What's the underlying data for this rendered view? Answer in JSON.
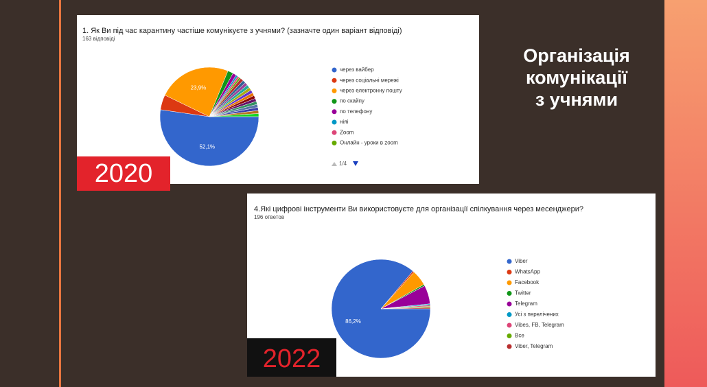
{
  "slide": {
    "title_lines": [
      "Організація",
      "комунікації",
      "з учнями"
    ]
  },
  "chart_data": [
    {
      "type": "pie",
      "title": "1. Як Ви під час карантину частіше комунікуєте з учнями? (зазначте один варіант відповіді)",
      "subtitle": "163 відповіді",
      "badge": "2020",
      "pager": "1/4",
      "categories": [
        "через вайбер",
        "через соціальні мережі",
        "через електронну пошту",
        "по скайпу",
        "по телефону",
        "ніяі",
        "Zoom",
        "Онлайн - уроки в zoom",
        null,
        null,
        null,
        null,
        null,
        null,
        null,
        null,
        null,
        null,
        null,
        null,
        null,
        null
      ],
      "values": [
        52.1,
        4.9,
        23.9,
        1.8,
        1.2,
        0.6,
        0.6,
        0.6,
        1,
        1,
        1,
        1,
        1,
        1,
        1,
        1,
        1,
        1,
        1,
        1,
        1,
        1
      ],
      "value_labels": [
        "52,1%",
        null,
        "23,9%",
        null,
        null,
        null,
        null,
        null,
        null,
        null,
        null,
        null,
        null,
        null,
        null,
        null,
        null,
        null,
        null,
        null,
        null,
        null
      ],
      "colors": [
        "#3366cc",
        "#dc3912",
        "#ff9900",
        "#109618",
        "#990099",
        "#0099c6",
        "#dd4477",
        "#66aa00",
        "#b82e2e",
        "#316395",
        "#994499",
        "#22aa99",
        "#aaaa11",
        "#6633cc",
        "#e67300",
        "#8b0707",
        "#651067",
        "#329262",
        "#5574a6",
        "#3b3eac",
        "#b77322",
        "#16d620"
      ]
    },
    {
      "type": "pie",
      "title": "4.Які цифрові інструменти Ви використовуєте для організації спілкування через месенджери?",
      "subtitle": "196 ответов",
      "badge": "2022",
      "categories": [
        "Viber",
        "WhatsApp",
        "Facebook",
        "Twitter",
        "Telegram",
        "Усі з перелічених",
        "Vibes, FB, Telegram",
        "Все",
        "Viber, Telegram"
      ],
      "values": [
        86.2,
        0.5,
        5.1,
        0.5,
        6.1,
        0.4,
        0.4,
        0.4,
        0.4
      ],
      "value_labels": [
        "86,2%",
        null,
        null,
        null,
        null,
        null,
        null,
        null,
        null
      ],
      "colors": [
        "#3366cc",
        "#dc3912",
        "#ff9900",
        "#109618",
        "#990099",
        "#0099c6",
        "#dd4477",
        "#66aa00",
        "#b82e2e"
      ]
    }
  ]
}
